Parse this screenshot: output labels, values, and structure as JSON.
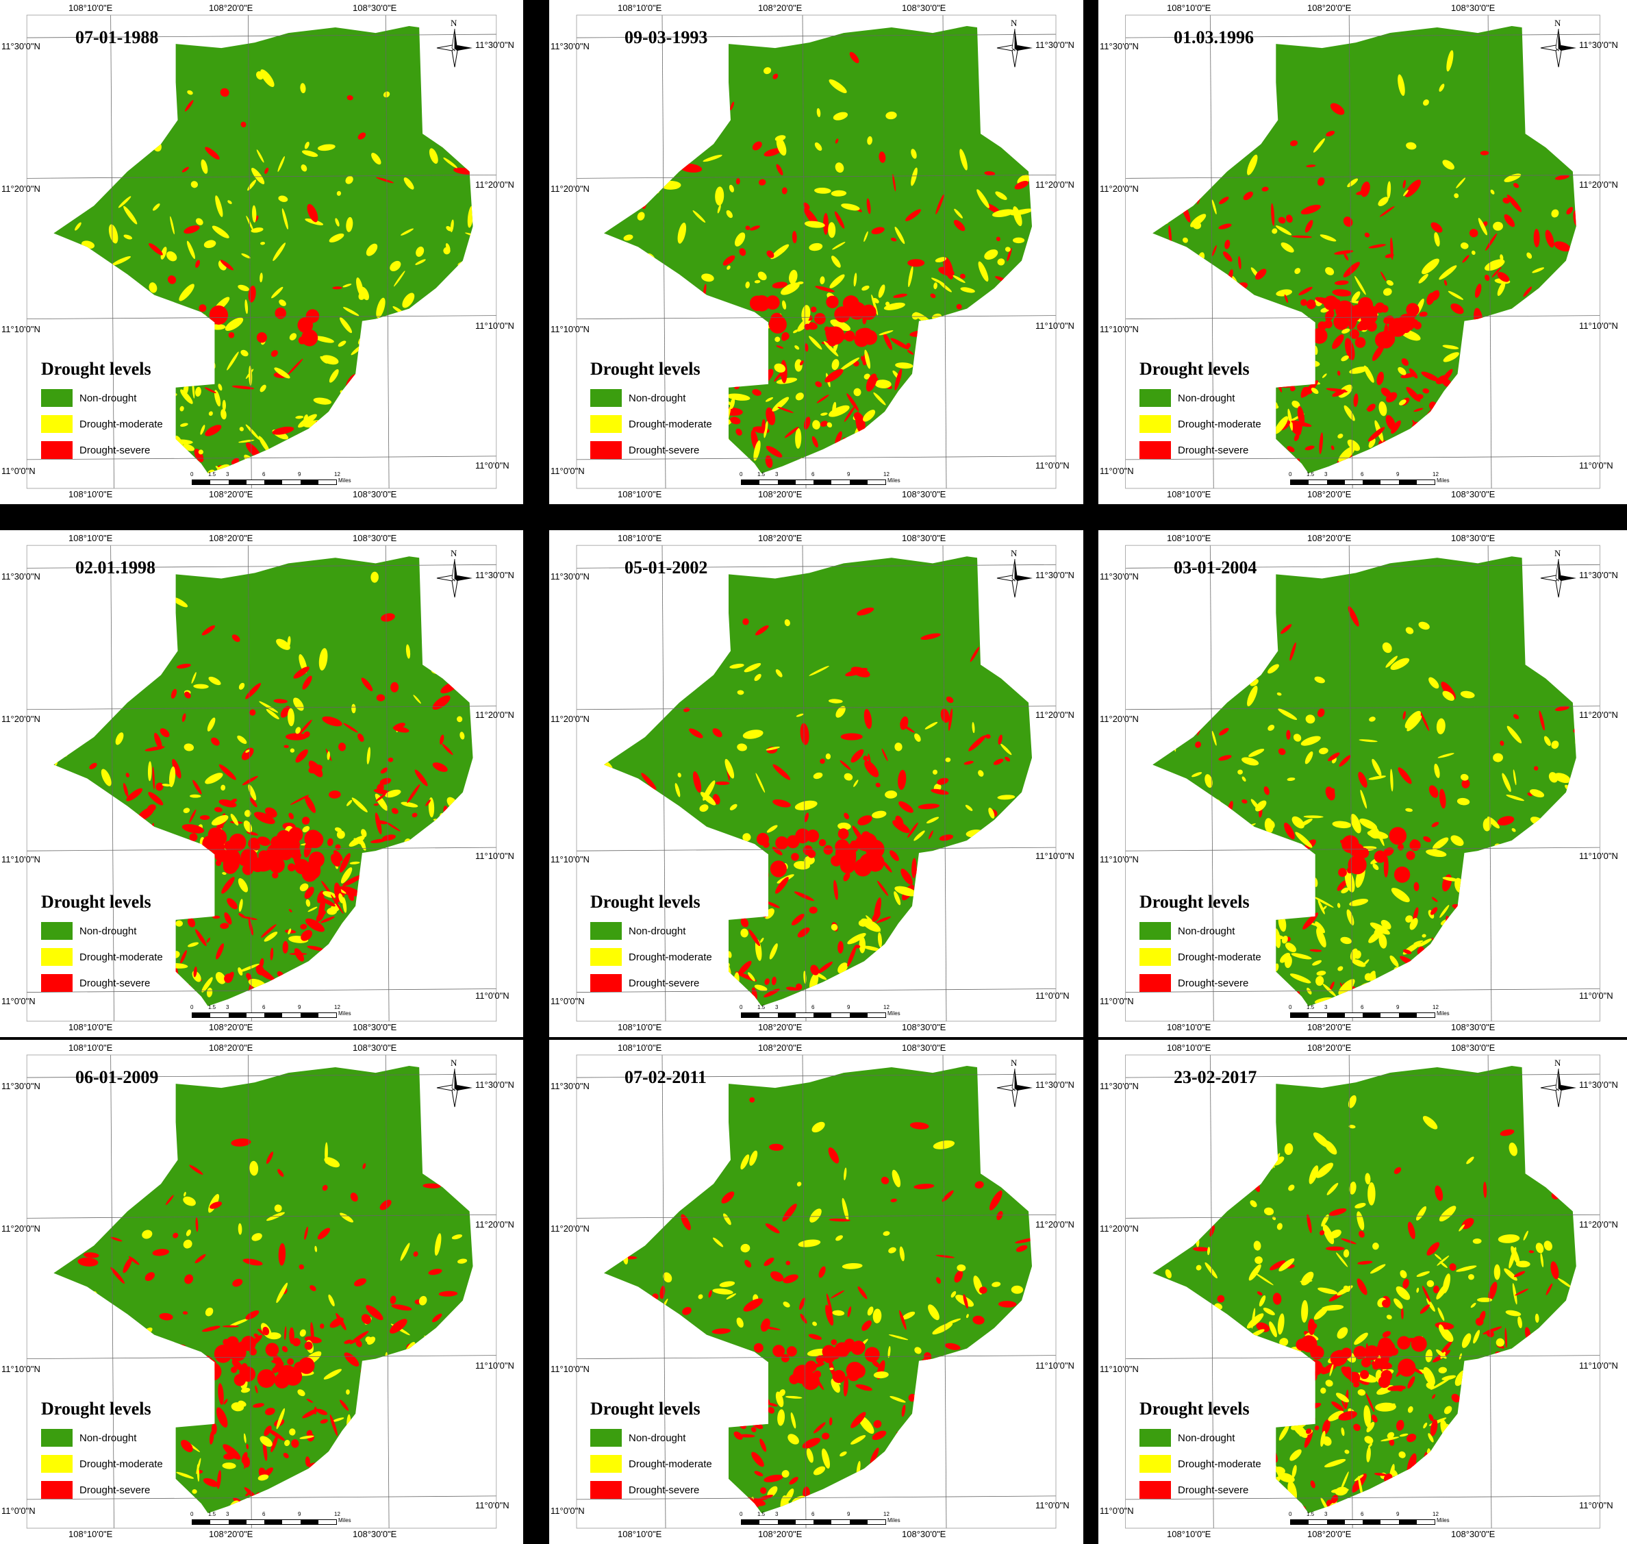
{
  "colors": {
    "non_drought": "#3b9e0f",
    "moderate": "#ffff00",
    "severe": "#ff0000",
    "frame": "#000000"
  },
  "legend": {
    "title": "Drought levels",
    "items": [
      {
        "label": "Non-drought",
        "color": "#3b9e0f"
      },
      {
        "label": "Drought-moderate",
        "color": "#ffff00"
      },
      {
        "label": "Drought-severe",
        "color": "#ff0000"
      }
    ]
  },
  "axis": {
    "lon_labels": [
      "108°10'0\"E",
      "108°20'0\"E",
      "108°30'0\"E"
    ],
    "lat_labels": [
      "11°30'0\"N",
      "11°20'0\"N",
      "11°10'0\"N",
      "11°0'0\"N"
    ]
  },
  "north_label": "N",
  "scale": {
    "ticks": [
      "0",
      "1.5",
      "3",
      "6",
      "9",
      "12"
    ],
    "unit": "Miles"
  },
  "panels": [
    {
      "date": "07-01-1988"
    },
    {
      "date": "09-03-1993"
    },
    {
      "date": "01.03.1996"
    },
    {
      "date": "02.01.1998"
    },
    {
      "date": "05-01-2002"
    },
    {
      "date": "03-01-2004"
    },
    {
      "date": "06-01-2009"
    },
    {
      "date": "07-02-2011"
    },
    {
      "date": "23-02-2017"
    }
  ]
}
